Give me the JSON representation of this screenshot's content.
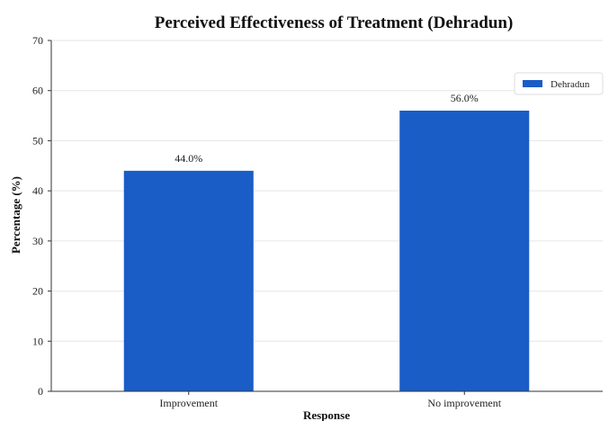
{
  "chart_data": {
    "type": "bar",
    "title": "Perceived Effectiveness of Treatment (Dehradun)",
    "xlabel": "Response",
    "ylabel": "Percentage (%)",
    "categories": [
      "Improvement",
      "No improvement"
    ],
    "series": [
      {
        "name": "Dehradun",
        "values": [
          44.0,
          56.0
        ],
        "color": "#1a5dc7"
      }
    ],
    "data_labels": [
      "44.0%",
      "56.0%"
    ],
    "ylim": [
      0,
      70
    ],
    "yticks": [
      0,
      10,
      20,
      30,
      40,
      50,
      60,
      70
    ],
    "grid": true,
    "legend_position": "top-right"
  }
}
